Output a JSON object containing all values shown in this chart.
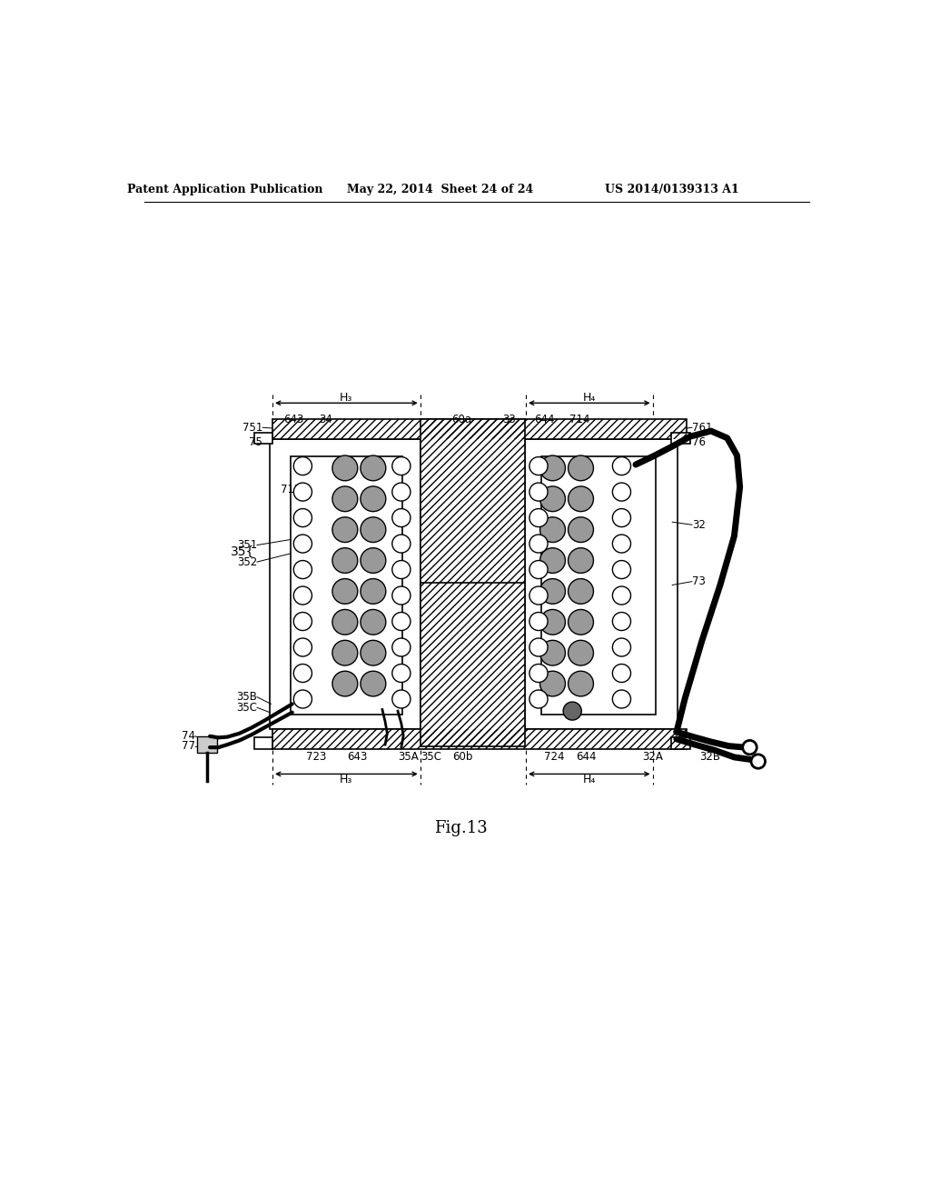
{
  "header_left": "Patent Application Publication",
  "header_mid": "May 22, 2014  Sheet 24 of 24",
  "header_right": "US 2014/0139313 A1",
  "fig_label": "Fig.13",
  "bg_color": "#ffffff",
  "lc": "#000000"
}
